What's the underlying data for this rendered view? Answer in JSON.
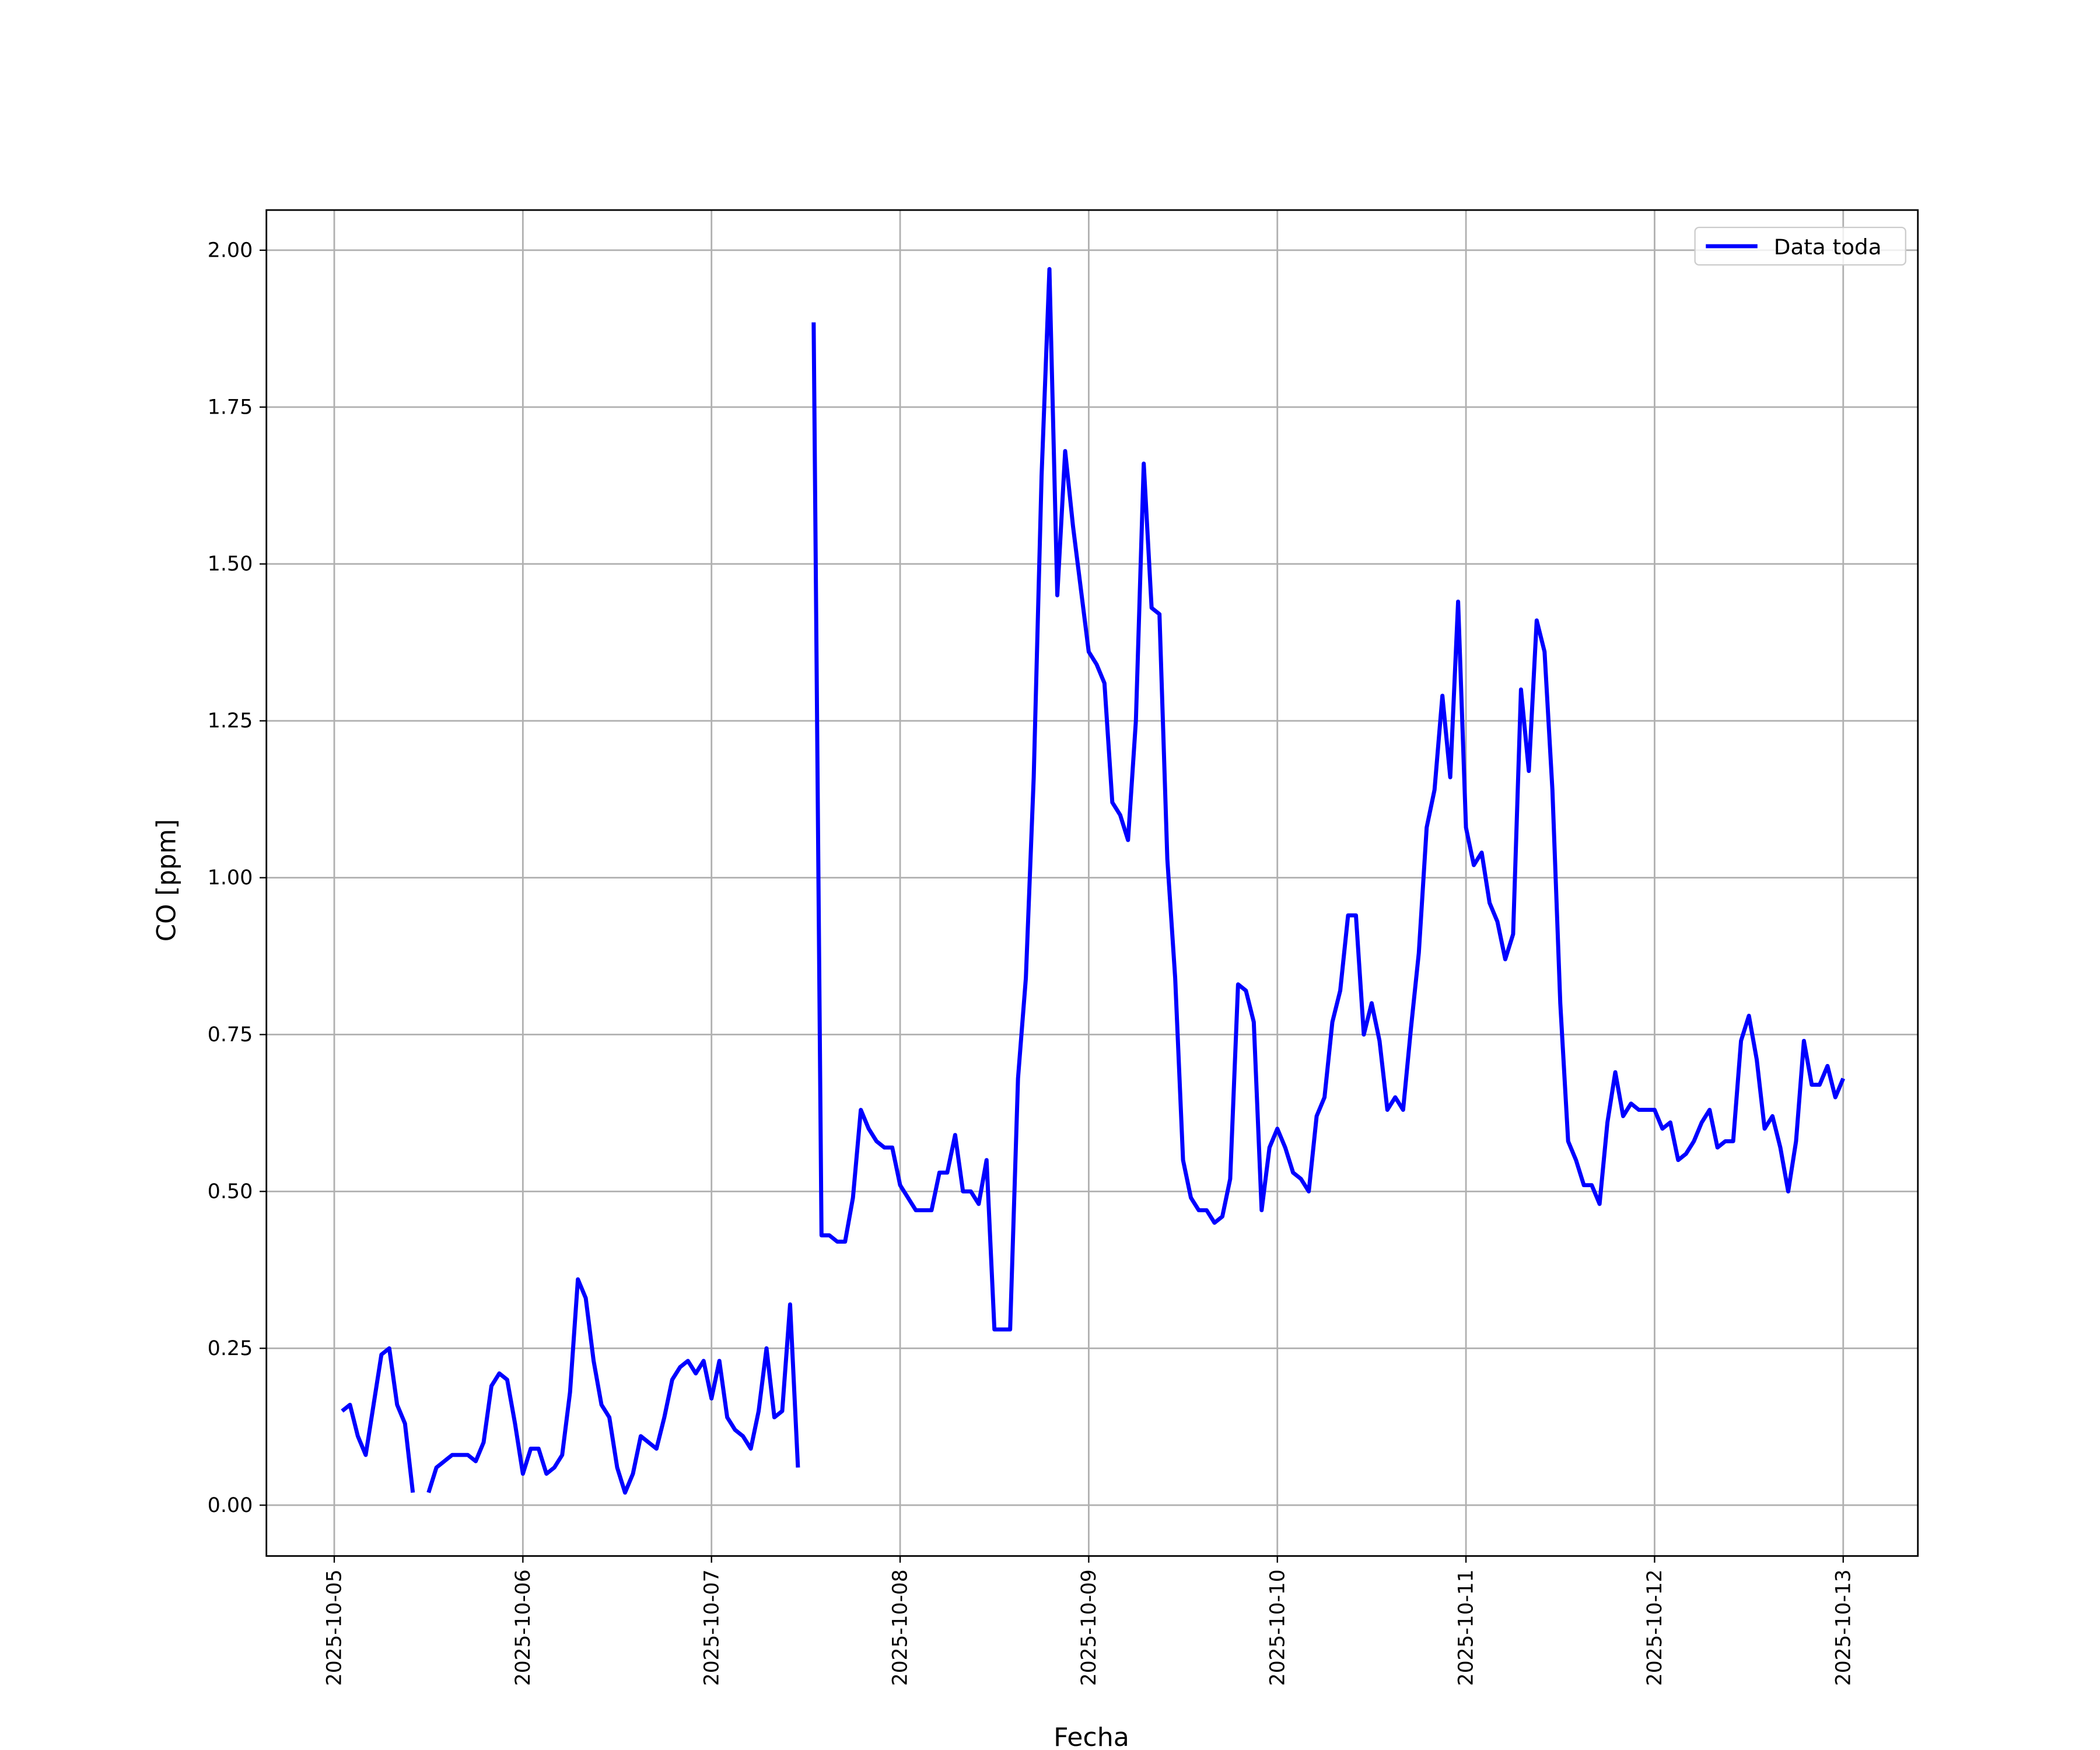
{
  "chart_data": {
    "type": "line",
    "xlabel": "Fecha",
    "ylabel": "CO [ppm]",
    "legend": "upper right",
    "grid": true,
    "xlim": [
      "2025-10-04 15:22",
      "2025-10-13 09:30"
    ],
    "xticks": [
      "2025-10-05",
      "2025-10-06",
      "2025-10-07",
      "2025-10-08",
      "2025-10-09",
      "2025-10-10",
      "2025-10-11",
      "2025-10-12",
      "2025-10-13"
    ],
    "ylim": [
      -0.081,
      2.064
    ],
    "yticks": [
      {
        "value": 0,
        "label": "0.00"
      },
      0.25,
      {
        "value": 0.5,
        "label": "0.50"
      },
      0.75,
      {
        "value": 1,
        "label": "1.00"
      },
      1.25,
      {
        "value": 1.5,
        "label": "1.50"
      },
      1.75,
      {
        "value": 2,
        "label": "2.00"
      }
    ],
    "x": [
      "2025-10-05 01:00",
      "2025-10-05 02:00",
      "2025-10-05 03:00",
      "2025-10-05 04:00",
      "2025-10-05 05:00",
      "2025-10-05 06:00",
      "2025-10-05 07:00",
      "2025-10-05 08:00",
      "2025-10-05 09:00",
      "2025-10-05 10:00",
      "2025-10-05 11:00",
      "2025-10-05 12:00",
      "2025-10-05 13:00",
      "2025-10-05 14:00",
      "2025-10-05 15:00",
      "2025-10-05 16:00",
      "2025-10-05 17:00",
      "2025-10-05 18:00",
      "2025-10-05 19:00",
      "2025-10-05 20:00",
      "2025-10-05 21:00",
      "2025-10-05 22:00",
      "2025-10-05 23:00",
      "2025-10-06 00:00",
      "2025-10-06 01:00",
      "2025-10-06 02:00",
      "2025-10-06 03:00",
      "2025-10-06 04:00",
      "2025-10-06 05:00",
      "2025-10-06 06:00",
      "2025-10-06 07:00",
      "2025-10-06 08:00",
      "2025-10-06 09:00",
      "2025-10-06 10:00",
      "2025-10-06 11:00",
      "2025-10-06 12:00",
      "2025-10-06 13:00",
      "2025-10-06 14:00",
      "2025-10-06 15:00",
      "2025-10-06 16:00",
      "2025-10-06 17:00",
      "2025-10-06 18:00",
      "2025-10-06 19:00",
      "2025-10-06 20:00",
      "2025-10-06 21:00",
      "2025-10-06 22:00",
      "2025-10-06 23:00",
      "2025-10-07 00:00",
      "2025-10-07 01:00",
      "2025-10-07 02:00",
      "2025-10-07 03:00",
      "2025-10-07 04:00",
      "2025-10-07 05:00",
      "2025-10-07 06:00",
      "2025-10-07 07:00",
      "2025-10-07 08:00",
      "2025-10-07 09:00",
      "2025-10-07 10:00",
      "2025-10-07 11:00",
      "2025-10-07 12:00",
      "2025-10-07 13:00",
      "2025-10-07 14:00",
      "2025-10-07 15:00",
      "2025-10-07 16:00",
      "2025-10-07 17:00",
      "2025-10-07 18:00",
      "2025-10-07 19:00",
      "2025-10-07 20:00",
      "2025-10-07 21:00",
      "2025-10-07 22:00",
      "2025-10-07 23:00",
      "2025-10-08 00:00",
      "2025-10-08 01:00",
      "2025-10-08 02:00",
      "2025-10-08 03:00",
      "2025-10-08 04:00",
      "2025-10-08 05:00",
      "2025-10-08 06:00",
      "2025-10-08 07:00",
      "2025-10-08 08:00",
      "2025-10-08 09:00",
      "2025-10-08 10:00",
      "2025-10-08 11:00",
      "2025-10-08 12:00",
      "2025-10-08 13:00",
      "2025-10-08 14:00",
      "2025-10-08 15:00",
      "2025-10-08 16:00",
      "2025-10-08 17:00",
      "2025-10-08 18:00",
      "2025-10-08 19:00",
      "2025-10-08 20:00",
      "2025-10-08 21:00",
      "2025-10-08 22:00",
      "2025-10-08 23:00",
      "2025-10-09 00:00",
      "2025-10-09 01:00",
      "2025-10-09 02:00",
      "2025-10-09 03:00",
      "2025-10-09 04:00",
      "2025-10-09 05:00",
      "2025-10-09 06:00",
      "2025-10-09 07:00",
      "2025-10-09 08:00",
      "2025-10-09 09:00",
      "2025-10-09 10:00",
      "2025-10-09 11:00",
      "2025-10-09 12:00",
      "2025-10-09 13:00",
      "2025-10-09 14:00",
      "2025-10-09 15:00",
      "2025-10-09 16:00",
      "2025-10-09 17:00",
      "2025-10-09 18:00",
      "2025-10-09 19:00",
      "2025-10-09 20:00",
      "2025-10-09 21:00",
      "2025-10-09 22:00",
      "2025-10-09 23:00",
      "2025-10-10 00:00",
      "2025-10-10 01:00",
      "2025-10-10 02:00",
      "2025-10-10 03:00",
      "2025-10-10 04:00",
      "2025-10-10 05:00",
      "2025-10-10 06:00",
      "2025-10-10 07:00",
      "2025-10-10 08:00",
      "2025-10-10 09:00",
      "2025-10-10 10:00",
      "2025-10-10 11:00",
      "2025-10-10 12:00",
      "2025-10-10 13:00",
      "2025-10-10 14:00",
      "2025-10-10 15:00",
      "2025-10-10 16:00",
      "2025-10-10 17:00",
      "2025-10-10 18:00",
      "2025-10-10 19:00",
      "2025-10-10 20:00",
      "2025-10-10 21:00",
      "2025-10-10 22:00",
      "2025-10-10 23:00",
      "2025-10-11 00:00",
      "2025-10-11 01:00",
      "2025-10-11 02:00",
      "2025-10-11 03:00",
      "2025-10-11 04:00",
      "2025-10-11 05:00",
      "2025-10-11 06:00",
      "2025-10-11 07:00",
      "2025-10-11 08:00",
      "2025-10-11 09:00",
      "2025-10-11 10:00",
      "2025-10-11 11:00",
      "2025-10-11 12:00",
      "2025-10-11 13:00",
      "2025-10-11 14:00",
      "2025-10-11 15:00",
      "2025-10-11 16:00",
      "2025-10-11 17:00",
      "2025-10-11 18:00",
      "2025-10-11 19:00",
      "2025-10-11 20:00",
      "2025-10-11 21:00",
      "2025-10-11 22:00",
      "2025-10-11 23:00",
      "2025-10-12 00:00",
      "2025-10-12 01:00",
      "2025-10-12 02:00",
      "2025-10-12 03:00",
      "2025-10-12 04:00",
      "2025-10-12 05:00",
      "2025-10-12 06:00",
      "2025-10-12 07:00",
      "2025-10-12 08:00",
      "2025-10-12 09:00",
      "2025-10-12 10:00",
      "2025-10-12 11:00",
      "2025-10-12 12:00",
      "2025-10-12 13:00",
      "2025-10-12 14:00",
      "2025-10-12 15:00",
      "2025-10-12 16:00",
      "2025-10-12 17:00",
      "2025-10-12 18:00",
      "2025-10-12 19:00",
      "2025-10-12 20:00",
      "2025-10-12 21:00",
      "2025-10-12 22:00",
      "2025-10-12 23:00",
      "2025-10-13 00:00"
    ],
    "series": [
      {
        "name": "Data toda",
        "color": "#0000ff",
        "values": [
          0.15,
          0.16,
          0.11,
          0.08,
          0.16,
          0.24,
          0.25,
          0.16,
          0.13,
          0.02,
          null,
          0.02,
          0.06,
          0.07,
          0.08,
          0.08,
          0.08,
          0.07,
          0.1,
          0.19,
          0.21,
          0.2,
          0.13,
          0.05,
          0.09,
          0.09,
          0.05,
          0.06,
          0.08,
          0.18,
          0.36,
          0.33,
          0.23,
          0.16,
          0.14,
          0.06,
          0.02,
          0.05,
          0.11,
          0.1,
          0.09,
          0.14,
          0.2,
          0.22,
          0.23,
          0.21,
          0.23,
          0.17,
          0.23,
          0.14,
          0.12,
          0.11,
          0.09,
          0.15,
          0.25,
          0.14,
          0.15,
          0.32,
          0.06,
          null,
          1.885,
          0.43,
          0.43,
          0.42,
          0.42,
          0.49,
          0.63,
          0.6,
          0.58,
          0.57,
          0.57,
          0.51,
          0.49,
          0.47,
          0.47,
          0.47,
          0.53,
          0.53,
          0.59,
          0.5,
          0.5,
          0.48,
          0.55,
          0.28,
          0.28,
          0.28,
          0.68,
          0.84,
          1.16,
          1.64,
          1.97,
          1.45,
          1.68,
          1.56,
          1.46,
          1.36,
          1.34,
          1.31,
          1.12,
          1.1,
          1.06,
          1.25,
          1.66,
          1.43,
          1.42,
          1.03,
          0.84,
          0.55,
          0.49,
          0.47,
          0.47,
          0.45,
          0.46,
          0.52,
          0.83,
          0.82,
          0.77,
          0.47,
          0.57,
          0.6,
          0.57,
          0.53,
          0.52,
          0.5,
          0.62,
          0.65,
          0.77,
          0.82,
          0.94,
          0.94,
          0.75,
          0.8,
          0.74,
          0.63,
          0.65,
          0.63,
          0.76,
          0.88,
          1.08,
          1.14,
          1.29,
          1.16,
          1.44,
          1.08,
          1.02,
          1.04,
          0.96,
          0.93,
          0.87,
          0.91,
          1.3,
          1.17,
          1.41,
          1.36,
          1.14,
          0.8,
          0.58,
          0.55,
          0.51,
          0.51,
          0.48,
          0.61,
          0.69,
          0.62,
          0.64,
          0.63,
          0.63,
          0.63,
          0.6,
          0.61,
          0.55,
          0.56,
          0.58,
          0.61,
          0.63,
          0.57,
          0.58,
          0.58,
          0.74,
          0.78,
          0.71,
          0.6,
          0.62,
          0.57,
          0.5,
          0.58,
          0.74,
          0.67,
          0.67,
          0.7,
          0.65,
          0.68
        ]
      }
    ]
  }
}
